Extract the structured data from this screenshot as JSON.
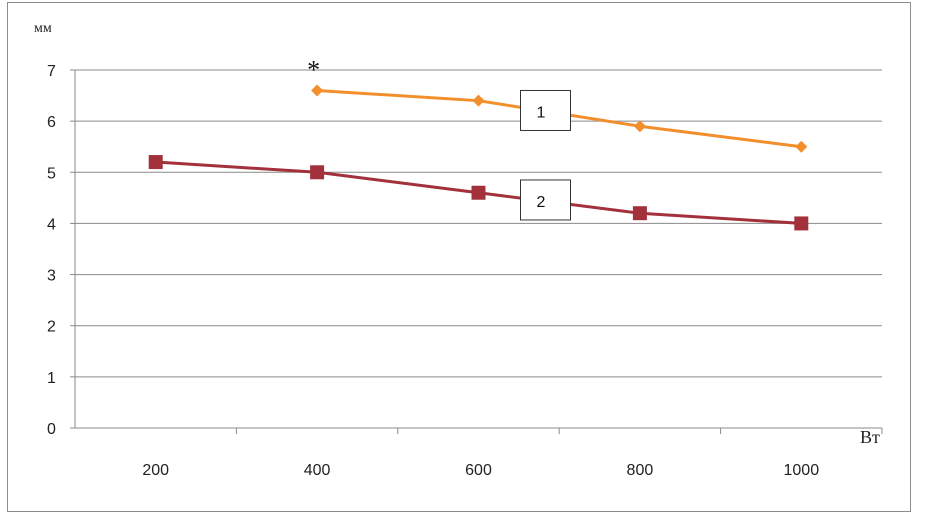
{
  "chart_data": {
    "type": "line",
    "title": "",
    "ylabel": "мм",
    "xlabel": "Вт",
    "categories": [
      "200",
      "400",
      "600",
      "800",
      "1000"
    ],
    "ylim": [
      0,
      7
    ],
    "yticks": [
      "0",
      "1",
      "2",
      "3",
      "4",
      "5",
      "6",
      "7"
    ],
    "grid": "horizontal",
    "series": [
      {
        "label": "1",
        "color": "#F28E2B",
        "marker": "diamond",
        "values": [
          null,
          6.6,
          6.4,
          5.9,
          5.5
        ]
      },
      {
        "label": "2",
        "color": "#A3313B",
        "marker": "square",
        "values": [
          5.2,
          5.0,
          4.6,
          4.2,
          4.0
        ]
      }
    ],
    "annotations": [
      {
        "text": "*",
        "x": "400",
        "series": "1"
      }
    ]
  }
}
